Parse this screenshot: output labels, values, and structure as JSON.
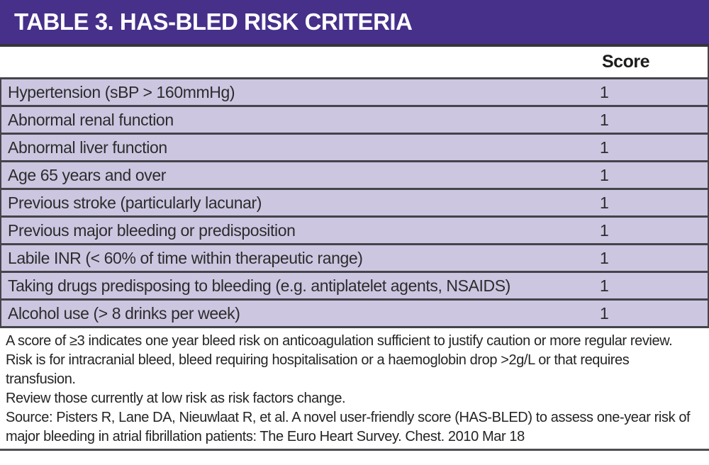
{
  "title": "TABLE 3. HAS-BLED RISK CRITERIA",
  "table": {
    "score_header": "Score",
    "rows": [
      {
        "criteria": "Hypertension (sBP > 160mmHg)",
        "score": "1"
      },
      {
        "criteria": "Abnormal renal function",
        "score": "1"
      },
      {
        "criteria": "Abnormal liver function",
        "score": "1"
      },
      {
        "criteria": "Age 65 years and over",
        "score": "1"
      },
      {
        "criteria": "Previous stroke (particularly lacunar)",
        "score": "1"
      },
      {
        "criteria": "Previous major bleeding or predisposition",
        "score": "1"
      },
      {
        "criteria": "Labile INR (< 60% of time within therapeutic range)",
        "score": "1"
      },
      {
        "criteria": "Taking drugs predisposing to bleeding (e.g. antiplatelet agents, NSAIDS)",
        "score": "1"
      },
      {
        "criteria": "Alcohol use (> 8 drinks per week)",
        "score": "1"
      }
    ]
  },
  "notes": {
    "note1": "A score of ≥3 indicates one year bleed risk on anticoagulation sufficient to justify caution or more regular review. Risk is for intracranial bleed, bleed requiring hospitalisation or a haemoglobin drop >2g/L or that requires transfusion.",
    "note2": "Review those currently at low risk as risk factors change.",
    "source": "Source: Pisters R, Lane DA, Nieuwlaat R, et al. A novel user-friendly score (HAS-BLED) to assess one-year risk of major bleeding in atrial fibrillation patients: The Euro Heart Survey. Chest. 2010 Mar 18"
  },
  "colors": {
    "header_purple": "#46308a",
    "row_lavender": "#ccc6e1",
    "border_dark": "#44444a",
    "text_dark": "#2c2c2c"
  }
}
